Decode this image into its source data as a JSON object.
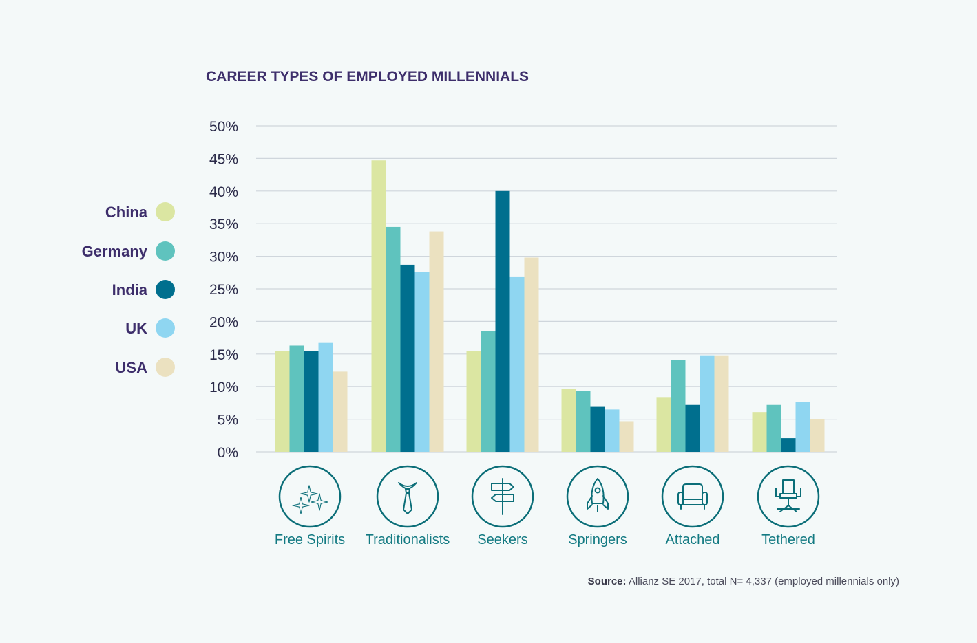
{
  "chart_data": {
    "type": "bar",
    "title": "CAREER TYPES OF EMPLOYED MILLENNIALS",
    "categories": [
      "Free Spirits",
      "Traditionalists",
      "Seekers",
      "Springers",
      "Attached",
      "Tethered"
    ],
    "category_icons": [
      "sparkles-icon",
      "necktie-icon",
      "signpost-icon",
      "rocket-icon",
      "armchair-icon",
      "office-chair-icon"
    ],
    "series": [
      {
        "name": "China",
        "color": "#dbe6a2",
        "values": [
          15.5,
          44.7,
          15.5,
          9.7,
          8.3,
          6.1
        ]
      },
      {
        "name": "Germany",
        "color": "#5fc3be",
        "values": [
          16.3,
          34.5,
          18.5,
          9.3,
          14.1,
          7.2
        ]
      },
      {
        "name": "India",
        "color": "#006f8e",
        "values": [
          15.5,
          28.7,
          40.0,
          6.9,
          7.2,
          2.1
        ]
      },
      {
        "name": "UK",
        "color": "#8fd6f1",
        "values": [
          16.7,
          27.6,
          26.8,
          6.5,
          14.8,
          7.6
        ]
      },
      {
        "name": "USA",
        "color": "#ebe1c0",
        "values": [
          12.3,
          33.8,
          29.8,
          4.7,
          14.8,
          5.0
        ]
      }
    ],
    "ylim": [
      0,
      50
    ],
    "yticks": [
      "0%",
      "5%",
      "10%",
      "15%",
      "20%",
      "25%",
      "30%",
      "35%",
      "40%",
      "45%",
      "50%"
    ],
    "xlabel": "",
    "ylabel": "",
    "legend_position": "left",
    "grid": true
  },
  "source": {
    "label": "Source:",
    "text": " Allianz SE 2017, total N= 4,337 (employed millennials only)"
  }
}
